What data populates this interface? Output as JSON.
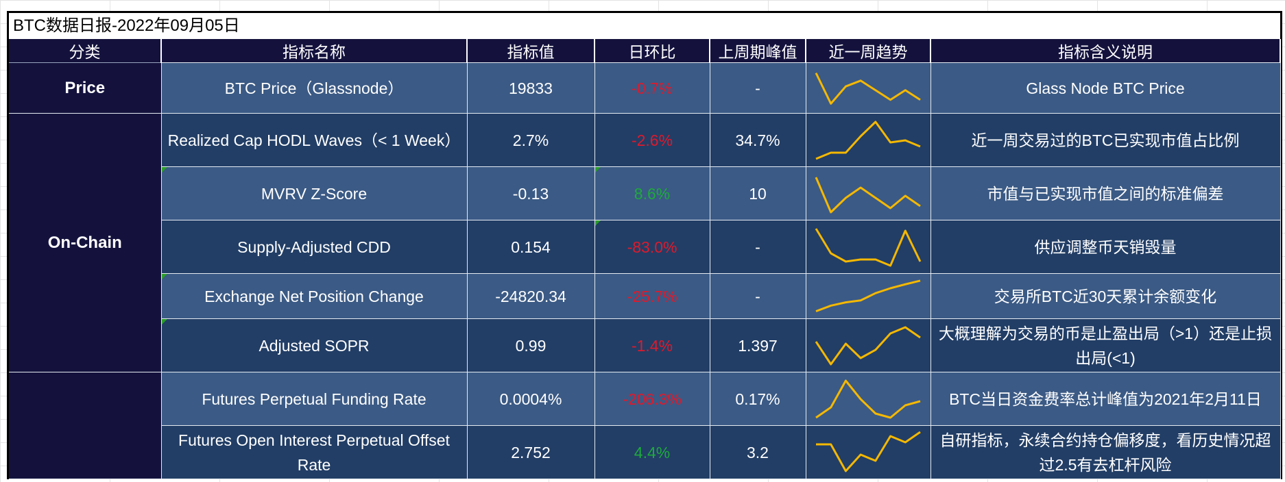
{
  "title": "BTC数据日报-2022年09月05日",
  "headers": [
    "分类",
    "指标名称",
    "指标值",
    "日环比",
    "上周期峰值",
    "近一周趋势",
    "指标含义说明"
  ],
  "categories": {
    "price": "Price",
    "onchain": "On-Chain",
    "derivatives": ""
  },
  "colors": {
    "header_bg": "#14123d",
    "row_light": "#3b5a85",
    "row_dark": "#223e66",
    "negative": "#e0192b",
    "positive": "#1eaa3c",
    "trend_line": "#f5b800"
  },
  "rows": [
    {
      "name": "BTC Price（Glassnode）",
      "value": "19833",
      "change": "-0.7%",
      "peak": "-",
      "note": "Glass Node BTC Price",
      "trend": [
        0.9,
        0.1,
        0.55,
        0.7,
        0.45,
        0.2,
        0.45,
        0.2
      ]
    },
    {
      "name": "Realized Cap HODL Waves（< 1 Week）",
      "value": "2.7%",
      "change": "-2.6%",
      "peak": "34.7%",
      "note": "近一周交易过的BTC已实现市值占比例",
      "trend": [
        0.05,
        0.2,
        0.2,
        0.6,
        0.95,
        0.45,
        0.5,
        0.35
      ]
    },
    {
      "name": "MVRV Z-Score",
      "value": "-0.13",
      "change": "8.6%",
      "peak": "10",
      "note": "市值与已实现市值之间的标准偏差",
      "trend": [
        0.9,
        0.05,
        0.4,
        0.65,
        0.4,
        0.15,
        0.45,
        0.2
      ]
    },
    {
      "name": "Supply-Adjusted CDD",
      "value": "0.154",
      "change": "-83.0%",
      "peak": "-",
      "note": "供应调整币天销毁量",
      "trend": [
        0.95,
        0.35,
        0.15,
        0.2,
        0.2,
        0.05,
        0.9,
        0.15
      ]
    },
    {
      "name": "Exchange Net Position Change",
      "value": "-24820.34",
      "change": "-25.7%",
      "peak": "-",
      "note": "交易所BTC近30天累计余额变化",
      "trend": [
        0.05,
        0.22,
        0.32,
        0.38,
        0.6,
        0.75,
        0.87,
        0.98
      ]
    },
    {
      "name": "Adjusted SOPR",
      "value": "0.99",
      "change": "-1.4%",
      "peak": "1.397",
      "note": "大概理解为交易的币是止盈出局（>1）还是止损出局(<1)",
      "trend": [
        0.6,
        0.05,
        0.55,
        0.2,
        0.4,
        0.8,
        0.95,
        0.7
      ]
    },
    {
      "name": "Futures Perpetual Funding Rate",
      "value": "0.0004%",
      "change": "-206.3%",
      "peak": "0.17%",
      "note": "BTC当日资金费率总计峰值为2021年2月11日",
      "trend": [
        0.05,
        0.3,
        0.95,
        0.5,
        0.15,
        0.05,
        0.35,
        0.45
      ]
    },
    {
      "name": "Futures Open Interest Perpetual Offset Rate",
      "value": "2.752",
      "change": "4.4%",
      "peak": "3.2",
      "note": "自研指标，永续合约持仓偏移度，看历史情况超过2.5有去杠杆风险",
      "trend": [
        0.7,
        0.7,
        0.05,
        0.45,
        0.3,
        0.9,
        0.75,
        1.0
      ]
    }
  ]
}
